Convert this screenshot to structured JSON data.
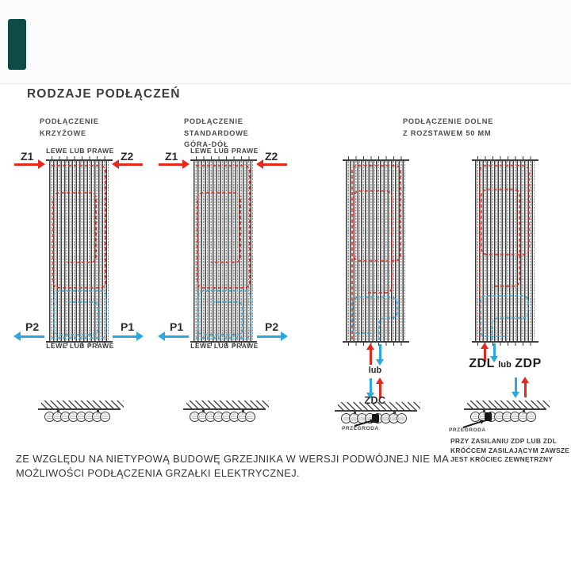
{
  "page": {
    "title": "RODZAJE PODŁĄCZEŃ"
  },
  "colors": {
    "supply_red": "#e4291d",
    "return_blue": "#29a9e0",
    "brand_teal": "#0e4b46",
    "line_dark": "#3f3f3f"
  },
  "sections": {
    "krzyzowe": {
      "header_line1": "PODŁĄCZENIE",
      "header_line2": "KRZYŻOWE",
      "top_label": "LEWE LUB PRAWE",
      "bottom_label": "LEWE LUB PRAWE",
      "z_left": "Z1",
      "z_right": "Z2",
      "p_left": "P2",
      "p_right": "P1"
    },
    "standardowe": {
      "header_line1": "PODŁĄCZENIE",
      "header_line2": "STANDARDOWE",
      "header_line3": "GÓRA-DÓŁ",
      "top_label": "LEWE LUB PRAWE",
      "bottom_label": "LEWE LUB PRAWE",
      "z_left": "Z1",
      "z_right": "Z2",
      "p_left": "P1",
      "p_right": "P2"
    },
    "dolne": {
      "header_line1": "PODŁĄCZENIE DOLNE",
      "header_line2": "Z ROZSTAWEM 50 MM",
      "zdc": {
        "lub": "lub",
        "label": "ZDC",
        "przegroda": "PRZEGRODA"
      },
      "zdl_zdp": {
        "label_zdl": "ZDL",
        "lub": "lub",
        "label_zdp": "ZDP",
        "przegroda": "PRZEGRODA",
        "note_line1": "PRZY ZASILANIU ZDP LUB ZDL",
        "note_line2": "KRÓĆCEM ZASILAJĄCYM ZAWSZE",
        "note_line3": "JEST KRÓCIEC ZEWNĘTRZNY"
      }
    }
  },
  "footer": {
    "line1": "ZE WZGLĘDU NA NIETYPOWĄ BUDOWĘ GRZEJNIKA W WERSJI PODWÓJNEJ NIE MA",
    "line2": "MOŻLIWOŚCI PODŁĄCZENIA GRZAŁKI ELEKTRYCZNEJ."
  }
}
